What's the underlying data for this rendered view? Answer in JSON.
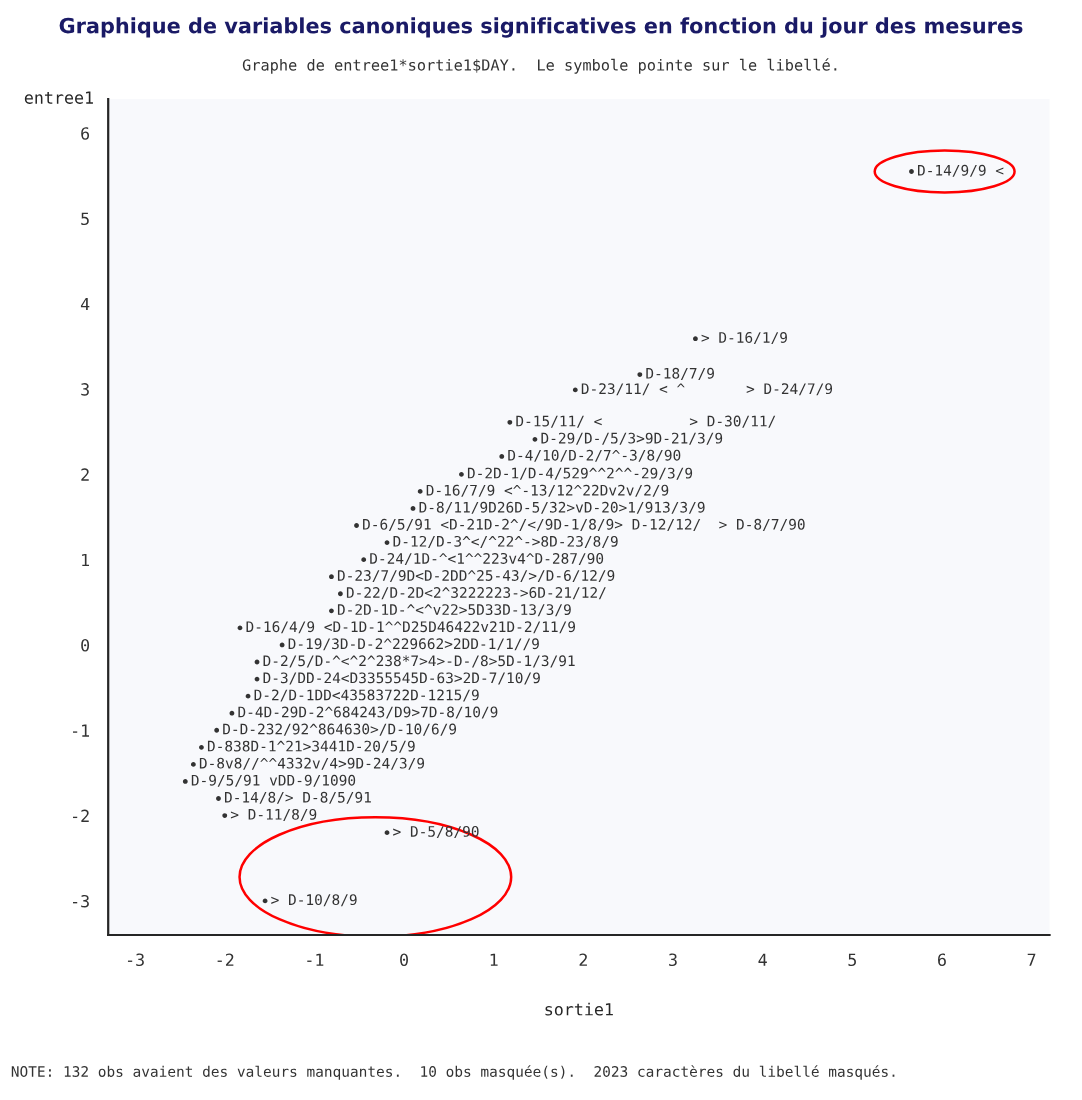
{
  "chart_data": {
    "type": "scatter",
    "title": "Graphique de variables canoniques significatives en fonction du jour des mesures",
    "subtitle": "Graphe de entree1*sortie1$DAY.  Le symbole pointe sur le libellé.",
    "xlabel": "sortie1",
    "ylabel": "entree1",
    "xlim": [
      -3.3,
      7.2
    ],
    "ylim": [
      -3.4,
      6.4
    ],
    "xticks": [
      -3,
      -2,
      -1,
      0,
      1,
      2,
      3,
      4,
      5,
      6,
      7
    ],
    "yticks": [
      -3,
      -2,
      -1,
      0,
      1,
      2,
      3,
      4,
      5,
      6
    ],
    "grid": false,
    "legend": false,
    "marker": "circle",
    "series": [
      {
        "color": "#333333",
        "x": [
          5.66,
          3.25,
          2.63,
          1.91,
          1.18,
          1.46,
          1.09,
          0.64,
          0.18,
          0.1,
          -0.53,
          -0.19,
          -0.45,
          -0.81,
          -0.71,
          -0.81,
          -1.83,
          -1.36,
          -1.64,
          -1.64,
          -1.74,
          -1.92,
          -2.09,
          -2.26,
          -2.35,
          -2.44,
          -2.07,
          -2.0,
          -0.19,
          -1.55
        ],
        "values": [
          5.55,
          3.59,
          3.17,
          2.99,
          2.61,
          2.41,
          2.21,
          2.0,
          1.8,
          1.6,
          1.4,
          1.2,
          1.0,
          0.8,
          0.6,
          0.4,
          0.2,
          0.0,
          -0.2,
          -0.4,
          -0.6,
          -0.8,
          -1.0,
          -1.2,
          -1.4,
          -1.6,
          -1.8,
          -2.0,
          -2.2,
          -3.0
        ]
      }
    ],
    "annotations": [
      {
        "text": "D-14/9/9 <",
        "x": 5.66,
        "y": 5.55
      },
      {
        "text": "> D-16/1/9",
        "x": 3.25,
        "y": 3.59
      },
      {
        "text": "D-18/7/9",
        "x": 2.63,
        "y": 3.17
      },
      {
        "text": "D-23/11/ < ^       > D-24/7/9",
        "x": 1.91,
        "y": 2.99
      },
      {
        "text": "D-15/11/ <          > D-30/11/",
        "x": 1.18,
        "y": 2.61
      },
      {
        "text": "D-29/D-/5/3>9D-21/3/9",
        "x": 1.46,
        "y": 2.41
      },
      {
        "text": "D-4/10/D-2/7^-3/8/90",
        "x": 1.09,
        "y": 2.21
      },
      {
        "text": "D-2D-1/D-4/529^^2^^-29/3/9",
        "x": 0.64,
        "y": 2.0
      },
      {
        "text": "D-16/7/9 <^-13/12^22Dv2v/2/9",
        "x": 0.18,
        "y": 1.8
      },
      {
        "text": "D-8/11/9D26D-5/32>vD-20>1/913/3/9",
        "x": 0.1,
        "y": 1.6
      },
      {
        "text": "D-6/5/91 <D-21D-2^/</9D-1/8/9> D-12/12/  > D-8/7/90",
        "x": -0.53,
        "y": 1.4
      },
      {
        "text": "D-12/D-3^</^22^->8D-23/8/9",
        "x": -0.19,
        "y": 1.2
      },
      {
        "text": "D-24/1D-^<1^^223v4^D-287/90",
        "x": -0.45,
        "y": 1.0
      },
      {
        "text": "D-23/7/9D<D-2DD^25-43/>/D-6/12/9",
        "x": -0.81,
        "y": 0.8
      },
      {
        "text": "D-22/D-2D<2^3222223->6D-21/12/",
        "x": -0.71,
        "y": 0.6
      },
      {
        "text": "D-2D-1D-^<^v22>5D33D-13/3/9",
        "x": -0.81,
        "y": 0.4
      },
      {
        "text": "D-16/4/9 <D-1D-1^^D25D46422v21D-2/11/9",
        "x": -1.83,
        "y": 0.2
      },
      {
        "text": "D-19/3D-D-2^229662>2DD-1/1//9",
        "x": -1.36,
        "y": 0.0
      },
      {
        "text": "D-2/5/D-^<^2^238*7>4>-D-/8>5D-1/3/91",
        "x": -1.64,
        "y": -0.2
      },
      {
        "text": "D-3/DD-24<D3355545D-63>2D-7/10/9",
        "x": -1.64,
        "y": -0.4
      },
      {
        "text": "D-2/D-1DD<43583722D-1215/9",
        "x": -1.74,
        "y": -0.6
      },
      {
        "text": "D-4D-29D-2^684243/D9>7D-8/10/9",
        "x": -1.92,
        "y": -0.8
      },
      {
        "text": "D-D-232/92^864630>/D-10/6/9",
        "x": -2.09,
        "y": -1.0
      },
      {
        "text": "D-838D-1^21>3441D-20/5/9",
        "x": -2.26,
        "y": -1.2
      },
      {
        "text": "D-8v8//^^4332v/4>9D-24/3/9",
        "x": -2.35,
        "y": -1.4
      },
      {
        "text": "D-9/5/91 vDD-9/1090",
        "x": -2.44,
        "y": -1.6
      },
      {
        "text": "D-14/8/> D-8/5/91",
        "x": -2.07,
        "y": -1.8
      },
      {
        "text": "> D-11/8/9",
        "x": -2.0,
        "y": -2.0
      },
      {
        "text": "> D-5/8/90",
        "x": -0.19,
        "y": -2.2
      },
      {
        "text": "> D-10/8/9",
        "x": -1.55,
        "y": -3.0
      },
      "NOTE: 132 obs avaient des valeurs manquantes.  10 obs masquée(s).  2023 caractères du libellé masqués."
    ]
  }
}
